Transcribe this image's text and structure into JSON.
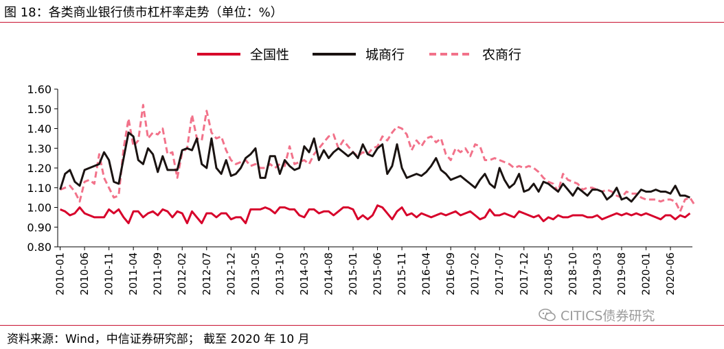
{
  "figure_title": "图 18：各类商业银行债市杠杆率走势（单位：%）",
  "source_note": "资料来源：Wind，中信证券研究部；  截至 2020 年 10 月",
  "watermark": {
    "text": "CITICS债券研究",
    "icon": "wechat-icon"
  },
  "colors": {
    "accent_rule": "#c8102e",
    "series_national": "#d7002a",
    "series_city": "#1a1311",
    "series_rural": "#f2728a"
  },
  "chart_data": {
    "type": "line",
    "legend_position": "top-center",
    "grid": false,
    "ylim": [
      0.8,
      1.6
    ],
    "yticks": [
      "0.80",
      "0.90",
      "1.00",
      "1.10",
      "1.20",
      "1.30",
      "1.40",
      "1.50",
      "1.60"
    ],
    "x_labels": [
      "2010-01",
      "2010-06",
      "2010-11",
      "2011-04",
      "2011-09",
      "2012-02",
      "2012-07",
      "2012-12",
      "2013-05",
      "2013-10",
      "2014-03",
      "2014-08",
      "2015-01",
      "2015-06",
      "2015-11",
      "2016-04",
      "2016-09",
      "2017-02",
      "2017-07",
      "2017-12",
      "2018-05",
      "2018-10",
      "2019-03",
      "2019-08",
      "2020-01",
      "2020-06"
    ],
    "x_count": 130,
    "series": [
      {
        "name": "全国性",
        "style": "solid",
        "values": [
          0.99,
          0.98,
          0.96,
          0.97,
          1.0,
          0.97,
          0.96,
          0.95,
          0.95,
          0.95,
          0.99,
          0.97,
          0.99,
          0.95,
          0.92,
          0.98,
          0.98,
          0.95,
          0.97,
          0.98,
          0.96,
          0.99,
          0.98,
          0.95,
          0.98,
          0.97,
          0.92,
          0.98,
          0.95,
          0.92,
          0.97,
          0.97,
          0.95,
          0.97,
          0.97,
          0.94,
          0.95,
          0.95,
          0.92,
          0.99,
          0.99,
          0.99,
          1.0,
          0.99,
          0.97,
          1.0,
          1.0,
          0.99,
          0.99,
          0.96,
          0.95,
          0.99,
          0.99,
          0.97,
          0.98,
          0.98,
          0.96,
          0.98,
          1.0,
          1.0,
          0.99,
          0.94,
          0.96,
          0.94,
          0.96,
          1.01,
          1.0,
          0.97,
          0.94,
          0.98,
          1.0,
          0.96,
          0.97,
          0.95,
          0.97,
          0.96,
          0.95,
          0.96,
          0.97,
          0.96,
          0.97,
          0.98,
          0.96,
          0.97,
          0.98,
          0.96,
          0.94,
          0.95,
          0.99,
          0.96,
          0.96,
          0.97,
          0.96,
          0.95,
          0.98,
          0.97,
          0.96,
          0.95,
          0.96,
          0.93,
          0.95,
          0.94,
          0.96,
          0.95,
          0.95,
          0.96,
          0.96,
          0.96,
          0.95,
          0.95,
          0.96,
          0.94,
          0.95,
          0.96,
          0.97,
          0.96,
          0.97,
          0.96,
          0.97,
          0.96,
          0.97,
          0.96,
          0.95,
          0.94,
          0.96,
          0.96,
          0.94,
          0.96,
          0.95,
          0.97
        ]
      },
      {
        "name": "城商行",
        "style": "solid",
        "values": [
          1.09,
          1.17,
          1.19,
          1.13,
          1.11,
          1.19,
          1.2,
          1.21,
          1.22,
          1.28,
          1.24,
          1.13,
          1.12,
          1.25,
          1.38,
          1.36,
          1.24,
          1.22,
          1.3,
          1.27,
          1.18,
          1.26,
          1.19,
          1.19,
          1.19,
          1.29,
          1.3,
          1.29,
          1.35,
          1.22,
          1.2,
          1.35,
          1.2,
          1.17,
          1.24,
          1.16,
          1.17,
          1.2,
          1.25,
          1.27,
          1.3,
          1.15,
          1.15,
          1.26,
          1.26,
          1.17,
          1.24,
          1.21,
          1.19,
          1.2,
          1.31,
          1.28,
          1.35,
          1.24,
          1.29,
          1.25,
          1.28,
          1.3,
          1.28,
          1.26,
          1.28,
          1.25,
          1.32,
          1.27,
          1.26,
          1.3,
          1.32,
          1.17,
          1.21,
          1.32,
          1.2,
          1.15,
          1.16,
          1.17,
          1.16,
          1.18,
          1.21,
          1.25,
          1.19,
          1.17,
          1.14,
          1.15,
          1.16,
          1.14,
          1.12,
          1.1,
          1.14,
          1.17,
          1.12,
          1.1,
          1.2,
          1.14,
          1.1,
          1.12,
          1.17,
          1.08,
          1.09,
          1.12,
          1.08,
          1.13,
          1.12,
          1.1,
          1.08,
          1.12,
          1.09,
          1.06,
          1.1,
          1.08,
          1.06,
          1.09,
          1.09,
          1.08,
          1.04,
          1.06,
          1.1,
          1.04,
          1.05,
          1.03,
          1.06,
          1.09,
          1.08,
          1.08,
          1.09,
          1.08,
          1.08,
          1.07,
          1.11,
          1.06,
          1.06,
          1.05
        ]
      },
      {
        "name": "农商行",
        "style": "dashed",
        "values": [
          1.09,
          1.1,
          1.11,
          1.08,
          1.03,
          1.13,
          1.14,
          1.12,
          1.27,
          1.15,
          1.1,
          1.05,
          1.06,
          1.3,
          1.45,
          1.31,
          1.34,
          1.52,
          1.35,
          1.38,
          1.37,
          1.4,
          1.27,
          1.28,
          1.15,
          1.28,
          1.3,
          1.47,
          1.35,
          1.34,
          1.49,
          1.38,
          1.35,
          1.36,
          1.29,
          1.24,
          1.22,
          1.23,
          1.24,
          1.21,
          1.22,
          1.2,
          1.2,
          1.22,
          1.2,
          1.22,
          1.21,
          1.31,
          1.22,
          1.23,
          1.24,
          1.22,
          1.27,
          1.3,
          1.33,
          1.36,
          1.37,
          1.3,
          1.34,
          1.31,
          1.28,
          1.26,
          1.28,
          1.27,
          1.3,
          1.31,
          1.36,
          1.34,
          1.38,
          1.41,
          1.4,
          1.37,
          1.29,
          1.34,
          1.31,
          1.35,
          1.36,
          1.33,
          1.35,
          1.27,
          1.24,
          1.3,
          1.28,
          1.3,
          1.26,
          1.32,
          1.31,
          1.24,
          1.24,
          1.25,
          1.24,
          1.23,
          1.22,
          1.2,
          1.21,
          1.2,
          1.21,
          1.2,
          1.18,
          1.15,
          1.13,
          1.12,
          1.08,
          1.17,
          1.14,
          1.13,
          1.12,
          1.09,
          1.1,
          1.1,
          1.09,
          1.08,
          1.09,
          1.08,
          1.06,
          1.05,
          1.08,
          1.07,
          1.07,
          1.05,
          1.04,
          1.04,
          1.04,
          1.03,
          1.04,
          1.04,
          1.03,
          0.98,
          1.04,
          1.05,
          1.01
        ]
      }
    ]
  }
}
